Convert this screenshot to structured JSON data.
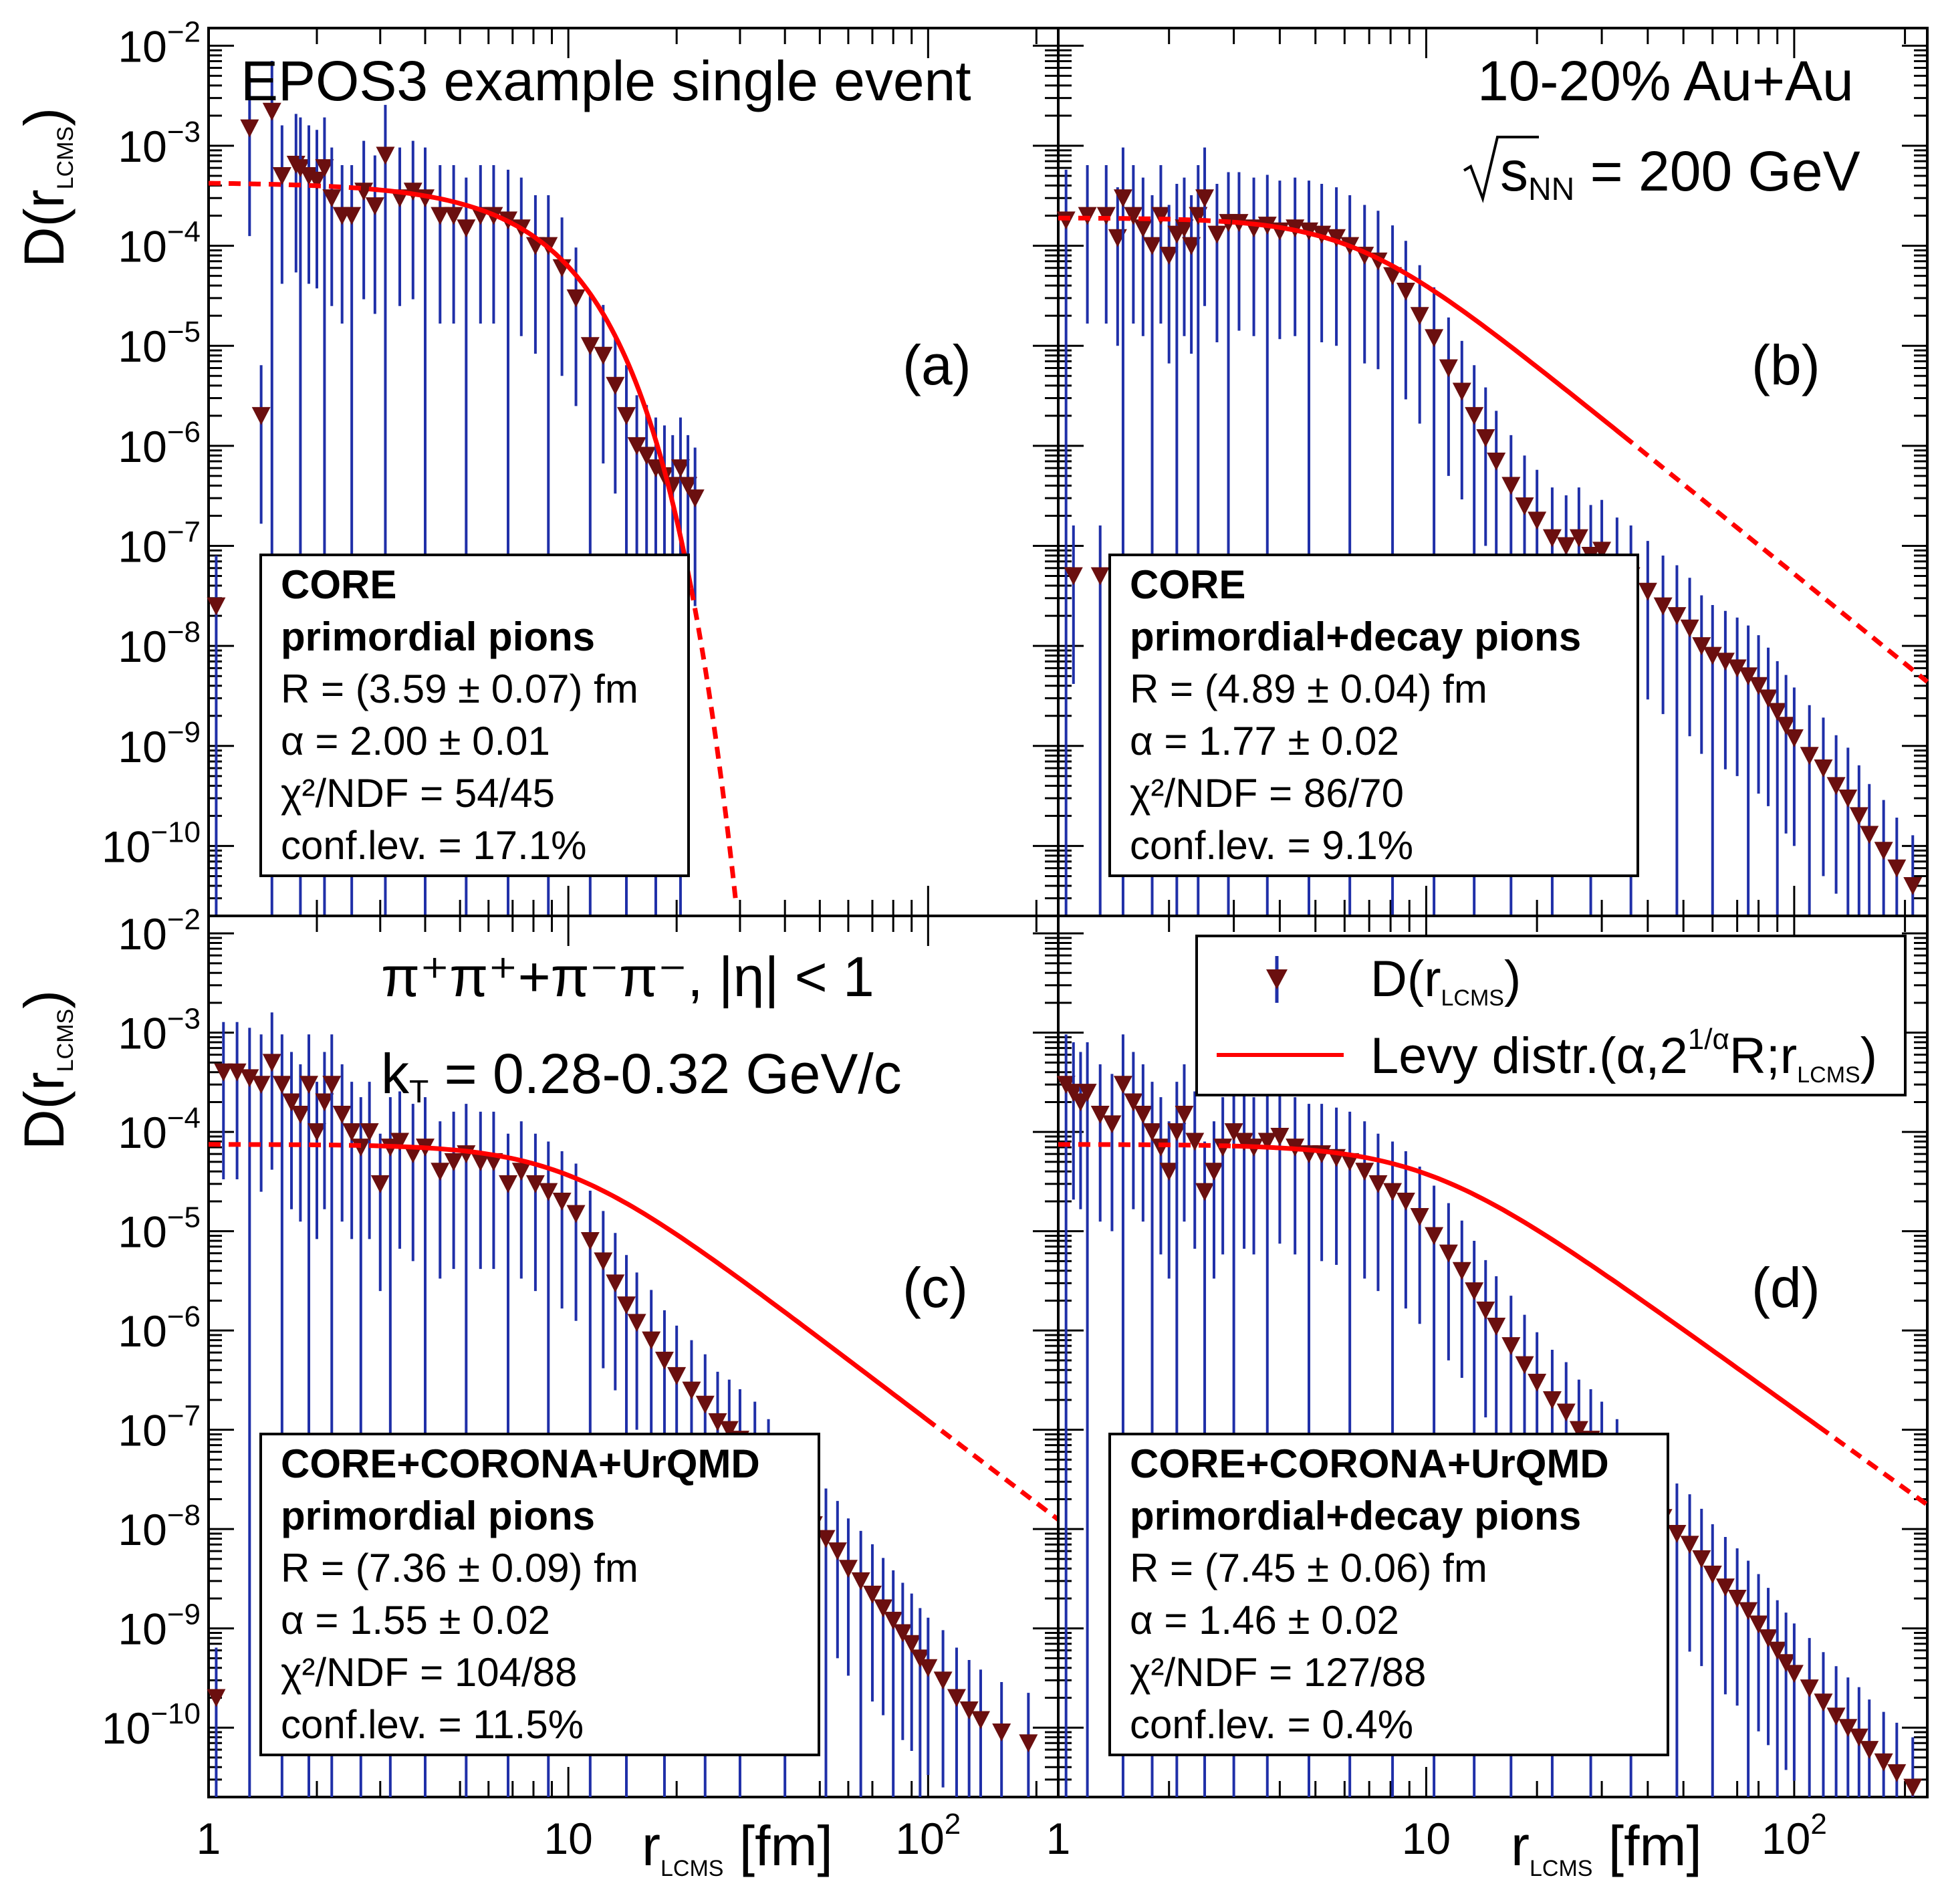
{
  "chart_data": [
    {
      "id": "a",
      "type": "scatter",
      "panel_label": "(a)",
      "title": "EPOS3 example single event",
      "xlabel": "r LCMS [fm]",
      "ylabel": "D(r LCMS)",
      "xscale": "log",
      "yscale": "log",
      "xlim": [
        1,
        230
      ],
      "ylim": [
        2e-11,
        0.015
      ],
      "box": [
        "CORE",
        "primordial pions",
        "R = (3.59 ± 0.07) fm",
        "α = 2.00 ± 0.01",
        "χ²/NDF = 54/45",
        "conf.lev. = 17.1%"
      ],
      "fit": {
        "alpha": 2.0,
        "R": 3.59,
        "N": 0.00043,
        "fit_range": [
          3,
          22
        ],
        "x_end": 35
      },
      "points": {
        "x": [
          1.05,
          1.3,
          1.4,
          1.5,
          1.6,
          1.75,
          1.8,
          1.9,
          2.0,
          2.1,
          2.2,
          2.35,
          2.5,
          2.7,
          2.9,
          3.1,
          3.4,
          3.7,
          4.0,
          4.4,
          4.8,
          5.2,
          5.7,
          6.2,
          6.8,
          7.4,
          8.1,
          8.8,
          9.6,
          10.5,
          11.5,
          12.5,
          13.5,
          14.5,
          15.5,
          16.5,
          17.5,
          18.5,
          19.5,
          20.5,
          21.5,
          22.5
        ],
        "y": [
          2.5e-08,
          0.0015,
          2e-06,
          0.0022,
          0.0005,
          0.00065,
          0.0006,
          0.0005,
          0.00045,
          0.0006,
          0.0003,
          0.0002,
          0.0002,
          0.00035,
          0.00025,
          0.0008,
          0.0003,
          0.00035,
          0.0003,
          0.0002,
          0.0002,
          0.00015,
          0.0002,
          0.0002,
          0.00018,
          0.00015,
          0.0001,
          0.0001,
          6e-05,
          3e-05,
          1e-05,
          8e-06,
          4e-06,
          2e-06,
          1e-06,
          8e-07,
          6e-07,
          5e-07,
          4e-07,
          6e-07,
          4e-07,
          3e-07
        ]
      }
    },
    {
      "id": "b",
      "type": "scatter",
      "panel_label": "(b)",
      "title": "10-20% Au+Au",
      "subtitle": "√sNN = 200 GeV",
      "xlabel": "r LCMS [fm]",
      "ylabel": "D(r LCMS)",
      "xscale": "log",
      "yscale": "log",
      "xlim": [
        1,
        230
      ],
      "ylim": [
        2e-11,
        0.015
      ],
      "box": [
        "CORE",
        "primordial+decay pions",
        "R = (4.89 ± 0.04) fm",
        "α = 1.77 ± 0.02",
        "χ²/NDF = 86/70",
        "conf.lev. = 9.1%"
      ],
      "fit": {
        "alpha": 1.77,
        "R": 4.89,
        "N": 0.00019,
        "fit_range": [
          3,
          35
        ],
        "x_end": 230
      },
      "points": {
        "x": [
          1.05,
          1.1,
          1.2,
          1.3,
          1.35,
          1.45,
          1.5,
          1.6,
          1.7,
          1.8,
          1.9,
          2.0,
          2.1,
          2.2,
          2.3,
          2.4,
          2.5,
          2.7,
          2.9,
          3.1,
          3.4,
          3.7,
          4.0,
          4.4,
          4.8,
          5.2,
          5.7,
          6.2,
          6.8,
          7.4,
          8.1,
          8.8,
          9.6,
          10.5,
          11.5,
          12.5,
          13.5,
          14.5,
          15.5,
          17,
          18.5,
          20,
          22,
          24,
          26,
          28,
          30,
          33,
          36,
          40,
          44,
          48,
          52,
          56,
          60,
          65,
          70,
          75,
          80,
          85,
          90,
          95,
          100,
          110,
          120,
          130,
          140,
          150,
          160,
          175,
          190,
          210
        ],
        "y": [
          0.00018,
          5e-08,
          0.0002,
          5e-08,
          0.0002,
          0.00012,
          0.0003,
          0.0002,
          0.00015,
          0.0001,
          0.0002,
          8e-05,
          0.00013,
          0.00015,
          0.0001,
          0.0002,
          0.0003,
          0.00013,
          0.00017,
          0.00017,
          0.00015,
          0.00016,
          0.00014,
          0.00015,
          0.00014,
          0.00013,
          0.00012,
          0.0001,
          8e-05,
          7e-05,
          5e-05,
          3.5e-05,
          2e-05,
          1.2e-05,
          6e-06,
          3.5e-06,
          2e-06,
          1.2e-06,
          7e-07,
          4e-07,
          2.5e-07,
          1.8e-07,
          1.2e-07,
          1e-07,
          1.2e-07,
          8e-08,
          9e-08,
          6e-08,
          5e-08,
          3.5e-08,
          2.5e-08,
          2e-08,
          1.5e-08,
          1e-08,
          8e-09,
          7e-09,
          6e-09,
          5e-09,
          4e-09,
          3e-09,
          2.2e-09,
          1.6e-09,
          1.2e-09,
          8e-10,
          6e-10,
          4e-10,
          3e-10,
          2e-10,
          1.3e-10,
          9e-11,
          6e-11,
          4e-11
        ]
      }
    },
    {
      "id": "c",
      "type": "scatter",
      "panel_label": "(c)",
      "title": "π⁺π⁺+π⁻π⁻, |η| < 1",
      "subtitle": "kT = 0.28-0.32 GeV/c",
      "xlabel": "r LCMS [fm]",
      "ylabel": "D(r LCMS)",
      "xscale": "log",
      "yscale": "log",
      "xlim": [
        1,
        230
      ],
      "ylim": [
        2e-11,
        0.015
      ],
      "box": [
        "CORE+CORONA+UrQMD",
        "primordial pions",
        "R = (7.36 ± 0.09) fm",
        "α = 1.55 ± 0.02",
        "χ²/NDF = 104/88",
        "conf.lev. = 11.5%"
      ],
      "fit": {
        "alpha": 1.55,
        "R": 7.36,
        "N": 7.5e-05,
        "fit_range": [
          3,
          100
        ],
        "x_end": 230
      },
      "points": {
        "x": [
          1.05,
          1.1,
          1.2,
          1.3,
          1.4,
          1.5,
          1.6,
          1.7,
          1.8,
          1.9,
          2.0,
          2.1,
          2.2,
          2.35,
          2.5,
          2.65,
          2.8,
          3.0,
          3.2,
          3.4,
          3.7,
          4.0,
          4.4,
          4.8,
          5.2,
          5.7,
          6.2,
          6.8,
          7.4,
          8.1,
          8.8,
          9.6,
          10.5,
          11.5,
          12.5,
          13.5,
          14.5,
          15.5,
          17,
          18.5,
          20,
          22,
          24,
          26,
          28,
          30,
          33,
          36,
          40,
          44,
          48,
          52,
          56,
          60,
          65,
          70,
          75,
          80,
          85,
          90,
          95,
          100,
          110,
          120,
          130,
          140,
          160,
          190
        ],
        "y": [
          2e-10,
          0.0004,
          0.0004,
          0.00035,
          0.0003,
          0.0005,
          0.0003,
          0.0002,
          0.00015,
          0.0003,
          0.0001,
          0.0002,
          0.0003,
          0.00015,
          0.0001,
          7e-05,
          0.0001,
          3e-05,
          7e-05,
          8e-05,
          6e-05,
          7e-05,
          4e-05,
          5e-05,
          6e-05,
          5e-05,
          5e-05,
          3e-05,
          4e-05,
          3e-05,
          2.5e-05,
          2e-05,
          1.5e-05,
          8e-06,
          5e-06,
          3e-06,
          1.8e-06,
          1.2e-06,
          8e-07,
          5e-07,
          3.5e-07,
          2.5e-07,
          1.8e-07,
          1.2e-07,
          1e-07,
          8e-08,
          6e-08,
          4e-08,
          2.5e-08,
          1.6e-08,
          1.1e-08,
          8e-09,
          6e-09,
          4e-09,
          3e-09,
          2.2e-09,
          1.6e-09,
          1.2e-09,
          9e-10,
          7e-10,
          5e-10,
          4e-10,
          3e-10,
          2e-10,
          1.5e-10,
          1.2e-10,
          9e-11,
          7e-11
        ]
      }
    },
    {
      "id": "d",
      "type": "scatter",
      "panel_label": "(d)",
      "xlabel": "r LCMS [fm]",
      "ylabel": "D(r LCMS)",
      "xscale": "log",
      "yscale": "log",
      "xlim": [
        1,
        230
      ],
      "ylim": [
        2e-11,
        0.015
      ],
      "legend": {
        "placement": "top-right",
        "entries": [
          "D(r LCMS)",
          "Levy distr.(α,2^(1/α)R;r LCMS)"
        ]
      },
      "box": [
        "CORE+CORONA+UrQMD",
        "primordial+decay pions",
        "R = (7.45 ± 0.06) fm",
        "α = 1.46 ± 0.02",
        "χ²/NDF = 127/88",
        "conf.lev. = 0.4%"
      ],
      "fit": {
        "alpha": 1.46,
        "R": 7.45,
        "N": 7.5e-05,
        "fit_range": [
          3,
          120
        ],
        "x_end": 230
      },
      "points": {
        "x": [
          1.05,
          1.1,
          1.15,
          1.2,
          1.3,
          1.4,
          1.5,
          1.6,
          1.7,
          1.8,
          1.9,
          2.0,
          2.1,
          2.2,
          2.35,
          2.5,
          2.65,
          2.8,
          3.0,
          3.2,
          3.4,
          3.7,
          4.0,
          4.4,
          4.8,
          5.2,
          5.7,
          6.2,
          6.8,
          7.4,
          8.1,
          8.8,
          9.6,
          10.5,
          11.5,
          12.5,
          13.5,
          14.5,
          15.5,
          17,
          18.5,
          20,
          22,
          24,
          26,
          28,
          30,
          33,
          36,
          40,
          44,
          48,
          52,
          56,
          60,
          65,
          70,
          75,
          80,
          85,
          90,
          95,
          100,
          110,
          120,
          130,
          140,
          150,
          160,
          175,
          190,
          210
        ],
        "y": [
          0.0003,
          0.00025,
          0.0002,
          0.00025,
          0.00015,
          0.00012,
          0.0003,
          0.0002,
          0.00015,
          0.0001,
          7e-05,
          4e-05,
          0.0001,
          0.00015,
          8e-05,
          2.5e-05,
          4e-05,
          7e-05,
          0.0001,
          8e-05,
          7e-05,
          8e-05,
          9e-05,
          7e-05,
          6e-05,
          6e-05,
          5.5e-05,
          5e-05,
          4e-05,
          3e-05,
          2.5e-05,
          2e-05,
          1.4e-05,
          9e-06,
          6e-06,
          4e-06,
          2.5e-06,
          1.6e-06,
          1.1e-06,
          7e-07,
          4.5e-07,
          3e-07,
          2e-07,
          1.5e-07,
          1e-07,
          8e-08,
          6e-08,
          4e-08,
          2.8e-08,
          1.9e-08,
          1.3e-08,
          9e-09,
          7e-09,
          5e-09,
          3.5e-09,
          2.6e-09,
          2e-09,
          1.5e-09,
          1.1e-09,
          8e-10,
          6e-10,
          4.5e-10,
          3.5e-10,
          2.5e-10,
          1.8e-10,
          1.3e-10,
          1e-10,
          8e-11,
          6e-11,
          4.5e-11,
          3.5e-11,
          2.5e-11
        ]
      }
    }
  ],
  "axis_text": {
    "y_ticks": [
      {
        "mant": "10",
        "exp": "−2",
        "v": 0.01
      },
      {
        "mant": "10",
        "exp": "−3",
        "v": 0.001
      },
      {
        "mant": "10",
        "exp": "−4",
        "v": 0.0001
      },
      {
        "mant": "10",
        "exp": "−5",
        "v": 1e-05
      },
      {
        "mant": "10",
        "exp": "−6",
        "v": 1e-06
      },
      {
        "mant": "10",
        "exp": "−7",
        "v": 1e-07
      },
      {
        "mant": "10",
        "exp": "−8",
        "v": 1e-08
      },
      {
        "mant": "10",
        "exp": "−9",
        "v": 1e-09
      },
      {
        "mant": "10",
        "exp": "−10",
        "v": 1e-10
      }
    ],
    "x_ticks": [
      {
        "label": "1",
        "v": 1
      },
      {
        "label": "10",
        "v": 10
      },
      {
        "label": "10",
        "exp": "2",
        "v": 100
      }
    ],
    "ylabel_main": "D(r",
    "ylabel_sub": "LCMS",
    "ylabel_close": ")",
    "xlabel_main": "r",
    "xlabel_sub": "LCMS",
    "xlabel_rest": " [fm]"
  },
  "annotations": {
    "a_title": "EPOS3 example single event",
    "b_title": "10-20% Au+Au",
    "b_sqrt_s": "s",
    "b_sqrt_sub": "NN",
    "b_sqrt_rest": " = 200 GeV",
    "c_line1": "π⁺π⁺+π⁻π⁻, |η| < 1",
    "c_k": "k",
    "c_k_sub": "T",
    "c_k_rest": " = 0.28-0.32 GeV/c",
    "legend_marker_label": "D(r",
    "legend_marker_sub": "LCMS",
    "legend_marker_close": ")",
    "legend_line_label": "Levy distr.(α,2",
    "legend_line_sup": "1/α",
    "legend_line_rest": "R;r",
    "legend_line_sub": "LCMS",
    "legend_line_close": ")"
  },
  "colors": {
    "marker": "#6b0f0f",
    "errorbar": "#1f2fa8",
    "fit": "#ff0000",
    "axes": "#000000"
  }
}
